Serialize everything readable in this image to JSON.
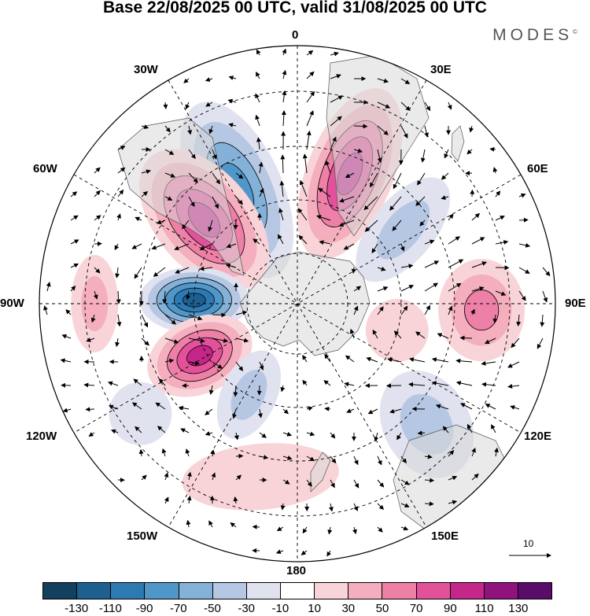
{
  "title": "Base 22/08/2025 00 UTC, valid 31/08/2025 00 UTC",
  "brand": "MODES",
  "brand_mark": "©",
  "longitudes": {
    "n0": "0",
    "n30e": "30E",
    "n60e": "60E",
    "n90e": "90E",
    "n120e": "120E",
    "n150e": "150E",
    "n180": "180",
    "n150w": "150W",
    "n120w": "120W",
    "n90w": "90W",
    "n60w": "60W",
    "n30w": "30W"
  },
  "reference_vector": "10",
  "colorbar": {
    "colors": [
      "#13405f",
      "#1d5f8f",
      "#2d79b2",
      "#4f97c8",
      "#84b1d8",
      "#b6c7e3",
      "#e1e2f0",
      "#ffffff",
      "#f8d4d8",
      "#f4aebd",
      "#ee7fa6",
      "#e2519a",
      "#c42689",
      "#8f127d",
      "#5a0c6b"
    ],
    "labels": [
      "-130",
      "-110",
      "-90",
      "-70",
      "-50",
      "-30",
      "-10",
      "10",
      "30",
      "50",
      "70",
      "90",
      "110",
      "130"
    ]
  },
  "anomaly_centers": [
    {
      "name": "neg-30w",
      "lon": -28,
      "lat": -55,
      "value": -95,
      "rx": 58,
      "ry": 120,
      "rot": -24
    },
    {
      "name": "pos-50w",
      "lon": -48,
      "lat": -56,
      "value": 115,
      "rx": 62,
      "ry": 105,
      "rot": -40
    },
    {
      "name": "pos-20e",
      "lon": 22,
      "lat": -52,
      "value": 100,
      "rx": 55,
      "ry": 115,
      "rot": 22
    },
    {
      "name": "neg-50e",
      "lon": 55,
      "lat": -55,
      "value": -55,
      "rx": 40,
      "ry": 80,
      "rot": 40
    },
    {
      "name": "neg-90w",
      "lon": -88,
      "lat": -62,
      "value": -130,
      "rx": 70,
      "ry": 42,
      "rot": 0
    },
    {
      "name": "pos-110w",
      "lon": -118,
      "lat": -60,
      "value": 115,
      "rx": 70,
      "ry": 48,
      "rot": -25
    },
    {
      "name": "neg-150w",
      "lon": -152,
      "lat": -62,
      "value": -45,
      "rx": 35,
      "ry": 60,
      "rot": 25
    },
    {
      "name": "pos-90w-far",
      "lon": -90,
      "lat": -35,
      "value": 45,
      "rx": 30,
      "ry": 62,
      "rot": 0
    },
    {
      "name": "pos-90e",
      "lon": 92,
      "lat": -40,
      "value": 60,
      "rx": 55,
      "ry": 65,
      "rot": 0
    },
    {
      "name": "pos-100e",
      "lon": 105,
      "lat": -62,
      "value": 35,
      "rx": 40,
      "ry": 40,
      "rot": 0
    },
    {
      "name": "neg-130e",
      "lon": 133,
      "lat": -42,
      "value": -40,
      "rx": 55,
      "ry": 72,
      "rot": -30
    },
    {
      "name": "pos-170w",
      "lon": -168,
      "lat": -42,
      "value": 25,
      "rx": 100,
      "ry": 42,
      "rot": -5
    },
    {
      "name": "neg-120w",
      "lon": -125,
      "lat": -38,
      "value": -25,
      "rx": 40,
      "ry": 40,
      "rot": 0
    }
  ]
}
